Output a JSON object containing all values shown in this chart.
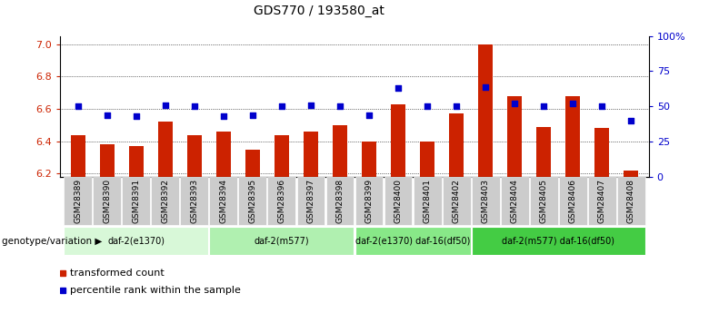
{
  "title": "GDS770 / 193580_at",
  "samples": [
    "GSM28389",
    "GSM28390",
    "GSM28391",
    "GSM28392",
    "GSM28393",
    "GSM28394",
    "GSM28395",
    "GSM28396",
    "GSM28397",
    "GSM28398",
    "GSM28399",
    "GSM28400",
    "GSM28401",
    "GSM28402",
    "GSM28403",
    "GSM28404",
    "GSM28405",
    "GSM28406",
    "GSM28407",
    "GSM28408"
  ],
  "transformed_count": [
    6.44,
    6.38,
    6.37,
    6.52,
    6.44,
    6.46,
    6.35,
    6.44,
    6.46,
    6.5,
    6.4,
    6.63,
    6.4,
    6.57,
    7.0,
    6.68,
    6.49,
    6.68,
    6.48,
    6.22
  ],
  "percentile_rank": [
    50,
    44,
    43,
    51,
    50,
    43,
    44,
    50,
    51,
    50,
    44,
    63,
    50,
    50,
    64,
    52,
    50,
    52,
    50,
    40
  ],
  "ylim_left": [
    6.18,
    7.05
  ],
  "ylim_right": [
    0,
    100
  ],
  "yticks_left": [
    6.2,
    6.4,
    6.6,
    6.8,
    7.0
  ],
  "yticks_right": [
    0,
    25,
    50,
    75,
    100
  ],
  "groups": [
    {
      "label": "daf-2(e1370)",
      "start": 0,
      "end": 5,
      "color": "#d8f8d8"
    },
    {
      "label": "daf-2(m577)",
      "start": 5,
      "end": 10,
      "color": "#b0f0b0"
    },
    {
      "label": "daf-2(e1370) daf-16(df50)",
      "start": 10,
      "end": 14,
      "color": "#88e888"
    },
    {
      "label": "daf-2(m577) daf-16(df50)",
      "start": 14,
      "end": 20,
      "color": "#44cc44"
    }
  ],
  "bar_color": "#cc2200",
  "dot_color": "#0000cc",
  "bar_width": 0.5,
  "genotype_label": "genotype/variation",
  "legend_bar": "transformed count",
  "legend_dot": "percentile rank within the sample",
  "baseline": 6.18,
  "left_label_color": "#cc2200",
  "right_label_color": "#0000cc",
  "xtick_bg": "#cccccc",
  "plot_bg": "#ffffff"
}
